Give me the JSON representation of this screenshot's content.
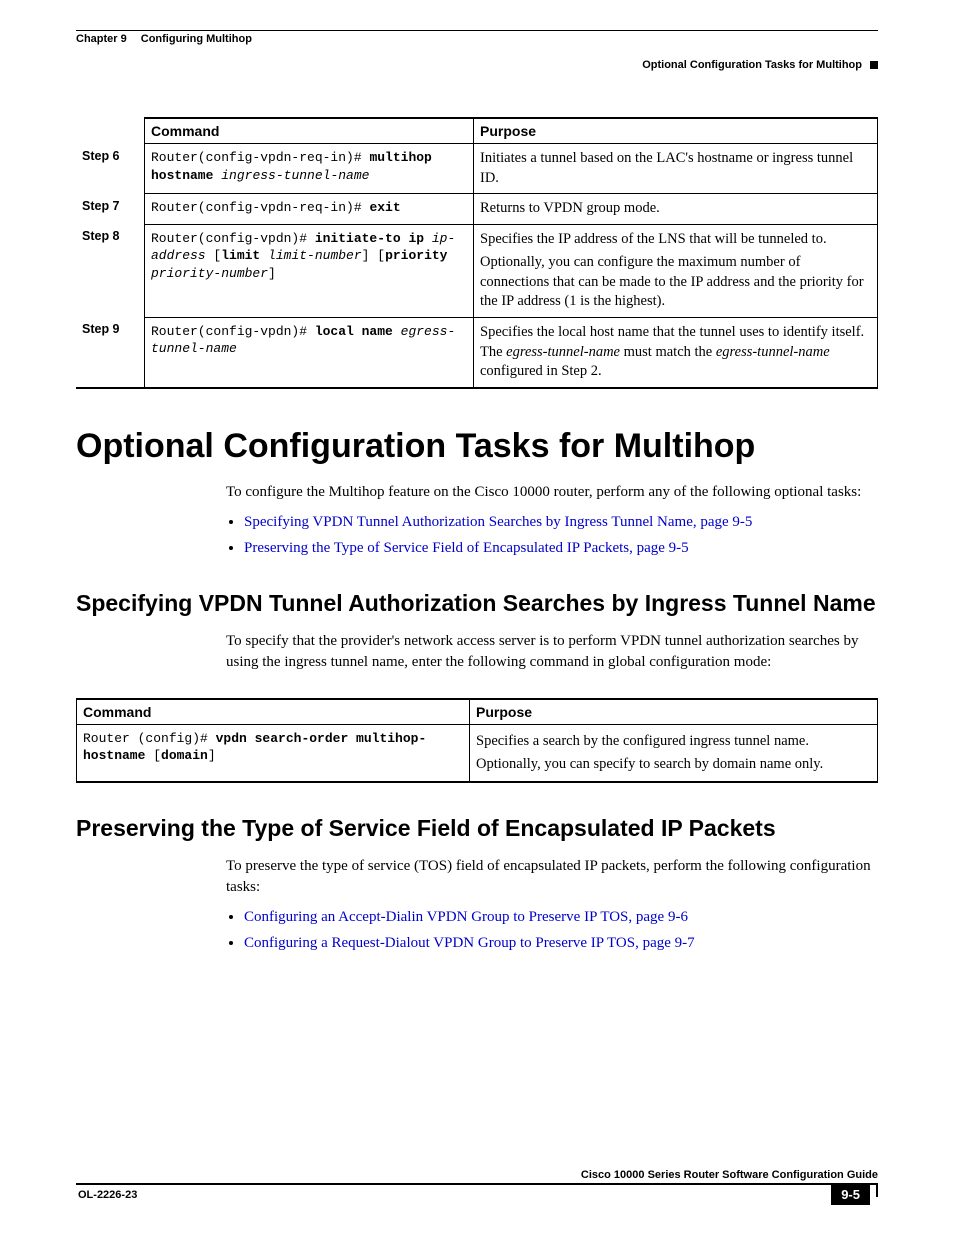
{
  "header": {
    "chapter_label": "Chapter 9",
    "chapter_title": "Configuring Multihop",
    "section_label": "Optional Configuration Tasks for Multihop"
  },
  "steps_table": {
    "headers": {
      "cmd": "Command",
      "purp": "Purpose"
    },
    "rows": [
      {
        "step": "Step 6",
        "cmd_html": "Router(config-vpdn-req-in)# <b>multihop hostname</b> <i>ingress-tunnel-name</i>",
        "purp_html": "<p>Initiates a tunnel based on the LAC's hostname or ingress tunnel ID.</p>"
      },
      {
        "step": "Step 7",
        "cmd_html": "Router(config-vpdn-req-in)# <b>exit</b>",
        "purp_html": "<p>Returns to VPDN group mode.</p>"
      },
      {
        "step": "Step 8",
        "cmd_html": "Router(config-vpdn)# <b>initiate-to ip</b> <i>ip-address</i> [<b>limit</b> <i>limit-number</i>] [<b>priority</b> <i>priority-number</i>]",
        "purp_html": "<p>Specifies the IP address of the LNS that will be tunneled to.</p><p>Optionally, you can configure the maximum number of connections that can be made to the IP address and the priority for the IP address (1 is the highest).</p>"
      },
      {
        "step": "Step 9",
        "cmd_html": "Router(config-vpdn)# <b>local name</b> <i>egress-tunnel-name</i>",
        "purp_html": "<p>Specifies the local host name that the tunnel uses to identify itself. The <i>egress-tunnel-name</i> must match the <i>egress-tunnel-name</i> configured in Step 2.</p>"
      }
    ]
  },
  "h1": "Optional Configuration Tasks for Multihop",
  "intro_para": "To configure the Multihop feature on the Cisco 10000 router, perform any of the following optional tasks:",
  "intro_bullets": [
    "Specifying VPDN Tunnel Authorization Searches by Ingress Tunnel Name, page 9-5",
    "Preserving the Type of Service Field of Encapsulated IP Packets, page 9-5"
  ],
  "sub1": {
    "title": "Specifying VPDN Tunnel Authorization Searches by Ingress Tunnel Name",
    "para": "To specify that the provider's network access server is to perform VPDN tunnel authorization searches by using the ingress tunnel name, enter the following command in global configuration mode:",
    "table": {
      "headers": {
        "cmd": "Command",
        "purp": "Purpose"
      },
      "cmd_html": "Router (config)# <b>vpdn search-order multihop-hostname</b> [<b>domain</b>]",
      "purp_html": "Specifies a search by the configured ingress tunnel name.<br>Optionally, you can specify to search by domain name only."
    }
  },
  "sub2": {
    "title": "Preserving the Type of Service Field of Encapsulated IP Packets",
    "para": "To preserve the type of service (TOS) field of encapsulated IP packets, perform the following configuration tasks:",
    "bullets": [
      "Configuring an Accept-Dialin VPDN Group to Preserve IP TOS, page 9-6",
      "Configuring a Request-Dialout VPDN Group to Preserve IP TOS, page 9-7"
    ]
  },
  "footer": {
    "guide": "Cisco 10000 Series Router Software Configuration Guide",
    "docnum": "OL-2226-23",
    "pagenum": "9-5"
  }
}
